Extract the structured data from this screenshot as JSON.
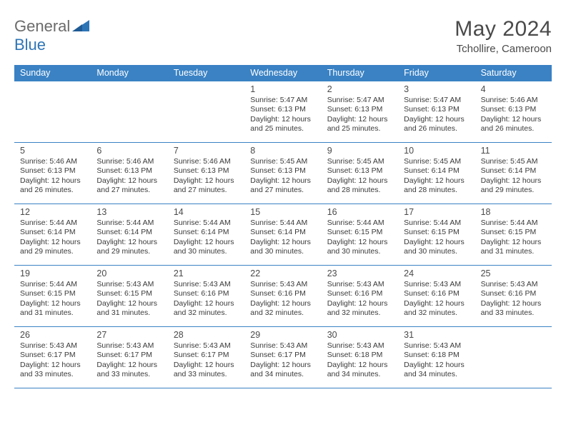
{
  "logo": {
    "text_gray": "General",
    "text_blue": "Blue"
  },
  "header": {
    "title": "May 2024",
    "subtitle": "Tchollire, Cameroon"
  },
  "colors": {
    "header_bg": "#3a82c4",
    "header_text": "#ffffff",
    "row_border": "#3a82c4",
    "logo_gray": "#6b6b6b",
    "logo_blue": "#2e75b6",
    "text_dark": "#4a4a4a",
    "cell_text": "#3a3a3a",
    "background": "#ffffff"
  },
  "typography": {
    "title_fontsize": 30,
    "subtitle_fontsize": 15,
    "day_header_fontsize": 12.5,
    "day_num_fontsize": 12.5,
    "cell_fontsize": 10.5
  },
  "calendar": {
    "type": "calendar-table",
    "columns": [
      "Sunday",
      "Monday",
      "Tuesday",
      "Wednesday",
      "Thursday",
      "Friday",
      "Saturday"
    ],
    "weeks": [
      [
        null,
        null,
        null,
        {
          "num": "1",
          "sunrise": "5:47 AM",
          "sunset": "6:13 PM",
          "daylight": "12 hours and 25 minutes."
        },
        {
          "num": "2",
          "sunrise": "5:47 AM",
          "sunset": "6:13 PM",
          "daylight": "12 hours and 25 minutes."
        },
        {
          "num": "3",
          "sunrise": "5:47 AM",
          "sunset": "6:13 PM",
          "daylight": "12 hours and 26 minutes."
        },
        {
          "num": "4",
          "sunrise": "5:46 AM",
          "sunset": "6:13 PM",
          "daylight": "12 hours and 26 minutes."
        }
      ],
      [
        {
          "num": "5",
          "sunrise": "5:46 AM",
          "sunset": "6:13 PM",
          "daylight": "12 hours and 26 minutes."
        },
        {
          "num": "6",
          "sunrise": "5:46 AM",
          "sunset": "6:13 PM",
          "daylight": "12 hours and 27 minutes."
        },
        {
          "num": "7",
          "sunrise": "5:46 AM",
          "sunset": "6:13 PM",
          "daylight": "12 hours and 27 minutes."
        },
        {
          "num": "8",
          "sunrise": "5:45 AM",
          "sunset": "6:13 PM",
          "daylight": "12 hours and 27 minutes."
        },
        {
          "num": "9",
          "sunrise": "5:45 AM",
          "sunset": "6:13 PM",
          "daylight": "12 hours and 28 minutes."
        },
        {
          "num": "10",
          "sunrise": "5:45 AM",
          "sunset": "6:14 PM",
          "daylight": "12 hours and 28 minutes."
        },
        {
          "num": "11",
          "sunrise": "5:45 AM",
          "sunset": "6:14 PM",
          "daylight": "12 hours and 29 minutes."
        }
      ],
      [
        {
          "num": "12",
          "sunrise": "5:44 AM",
          "sunset": "6:14 PM",
          "daylight": "12 hours and 29 minutes."
        },
        {
          "num": "13",
          "sunrise": "5:44 AM",
          "sunset": "6:14 PM",
          "daylight": "12 hours and 29 minutes."
        },
        {
          "num": "14",
          "sunrise": "5:44 AM",
          "sunset": "6:14 PM",
          "daylight": "12 hours and 30 minutes."
        },
        {
          "num": "15",
          "sunrise": "5:44 AM",
          "sunset": "6:14 PM",
          "daylight": "12 hours and 30 minutes."
        },
        {
          "num": "16",
          "sunrise": "5:44 AM",
          "sunset": "6:15 PM",
          "daylight": "12 hours and 30 minutes."
        },
        {
          "num": "17",
          "sunrise": "5:44 AM",
          "sunset": "6:15 PM",
          "daylight": "12 hours and 30 minutes."
        },
        {
          "num": "18",
          "sunrise": "5:44 AM",
          "sunset": "6:15 PM",
          "daylight": "12 hours and 31 minutes."
        }
      ],
      [
        {
          "num": "19",
          "sunrise": "5:44 AM",
          "sunset": "6:15 PM",
          "daylight": "12 hours and 31 minutes."
        },
        {
          "num": "20",
          "sunrise": "5:43 AM",
          "sunset": "6:15 PM",
          "daylight": "12 hours and 31 minutes."
        },
        {
          "num": "21",
          "sunrise": "5:43 AM",
          "sunset": "6:16 PM",
          "daylight": "12 hours and 32 minutes."
        },
        {
          "num": "22",
          "sunrise": "5:43 AM",
          "sunset": "6:16 PM",
          "daylight": "12 hours and 32 minutes."
        },
        {
          "num": "23",
          "sunrise": "5:43 AM",
          "sunset": "6:16 PM",
          "daylight": "12 hours and 32 minutes."
        },
        {
          "num": "24",
          "sunrise": "5:43 AM",
          "sunset": "6:16 PM",
          "daylight": "12 hours and 32 minutes."
        },
        {
          "num": "25",
          "sunrise": "5:43 AM",
          "sunset": "6:16 PM",
          "daylight": "12 hours and 33 minutes."
        }
      ],
      [
        {
          "num": "26",
          "sunrise": "5:43 AM",
          "sunset": "6:17 PM",
          "daylight": "12 hours and 33 minutes."
        },
        {
          "num": "27",
          "sunrise": "5:43 AM",
          "sunset": "6:17 PM",
          "daylight": "12 hours and 33 minutes."
        },
        {
          "num": "28",
          "sunrise": "5:43 AM",
          "sunset": "6:17 PM",
          "daylight": "12 hours and 33 minutes."
        },
        {
          "num": "29",
          "sunrise": "5:43 AM",
          "sunset": "6:17 PM",
          "daylight": "12 hours and 34 minutes."
        },
        {
          "num": "30",
          "sunrise": "5:43 AM",
          "sunset": "6:18 PM",
          "daylight": "12 hours and 34 minutes."
        },
        {
          "num": "31",
          "sunrise": "5:43 AM",
          "sunset": "6:18 PM",
          "daylight": "12 hours and 34 minutes."
        },
        null
      ]
    ]
  },
  "labels": {
    "sunrise_prefix": "Sunrise: ",
    "sunset_prefix": "Sunset: ",
    "daylight_prefix": "Daylight: "
  }
}
